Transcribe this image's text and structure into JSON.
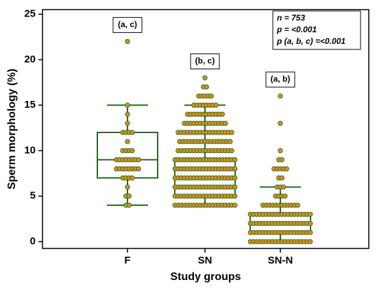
{
  "chart_data": {
    "type": "box",
    "xlabel": "Study groups",
    "ylabel": "Sperm morphology (%)",
    "categories": [
      "F",
      "SN",
      "SN-N"
    ],
    "boxes": [
      {
        "min": 4,
        "q1": 7,
        "median": 9,
        "q3": 12,
        "max": 15
      },
      {
        "min": 4,
        "q1": 5,
        "median": 7,
        "q3": 9,
        "max": 15
      },
      {
        "min": 0,
        "q1": 1,
        "median": 2,
        "q3": 3,
        "max": 6
      }
    ],
    "points": [
      [
        {
          "value": 4,
          "count": 2
        },
        {
          "value": 5,
          "count": 2
        },
        {
          "value": 6,
          "count": 1
        },
        {
          "value": 7,
          "count": 4
        },
        {
          "value": 8,
          "count": 8
        },
        {
          "value": 9,
          "count": 8
        },
        {
          "value": 10,
          "count": 4
        },
        {
          "value": 11,
          "count": 1
        },
        {
          "value": 12,
          "count": 4
        },
        {
          "value": 13,
          "count": 1
        },
        {
          "value": 14,
          "count": 1
        },
        {
          "value": 15,
          "count": 1
        },
        {
          "value": 22,
          "count": 1
        }
      ],
      [
        {
          "value": 4,
          "count": 20
        },
        {
          "value": 5,
          "count": 20
        },
        {
          "value": 6,
          "count": 20
        },
        {
          "value": 7,
          "count": 20
        },
        {
          "value": 8,
          "count": 20
        },
        {
          "value": 9,
          "count": 20
        },
        {
          "value": 10,
          "count": 18
        },
        {
          "value": 11,
          "count": 17
        },
        {
          "value": 12,
          "count": 18
        },
        {
          "value": 13,
          "count": 14
        },
        {
          "value": 14,
          "count": 12
        },
        {
          "value": 15,
          "count": 8
        },
        {
          "value": 16,
          "count": 5
        },
        {
          "value": 17,
          "count": 2
        },
        {
          "value": 18,
          "count": 1
        }
      ],
      [
        {
          "value": 0,
          "count": 20
        },
        {
          "value": 1,
          "count": 20
        },
        {
          "value": 2,
          "count": 20
        },
        {
          "value": 3,
          "count": 20
        },
        {
          "value": 4,
          "count": 12
        },
        {
          "value": 5,
          "count": 4
        },
        {
          "value": 6,
          "count": 3
        },
        {
          "value": 7,
          "count": 2
        },
        {
          "value": 8,
          "count": 5
        },
        {
          "value": 9,
          "count": 2
        },
        {
          "value": 10,
          "count": 1
        },
        {
          "value": 13,
          "count": 1
        },
        {
          "value": 16,
          "count": 1
        }
      ]
    ],
    "group_labels": [
      "(a, c)",
      "(b, c)",
      "(a, b)"
    ],
    "stats": [
      "n = 753",
      "p = <0.001",
      "p (a, b, c) =<0.001"
    ],
    "box_color": "#1f6e1f",
    "point_color": "#e8891c",
    "point_edge": "#2a7a2a",
    "ylim": [
      -0.75,
      25.5
    ],
    "yticks": [
      0,
      5,
      10,
      15,
      20,
      25
    ]
  }
}
